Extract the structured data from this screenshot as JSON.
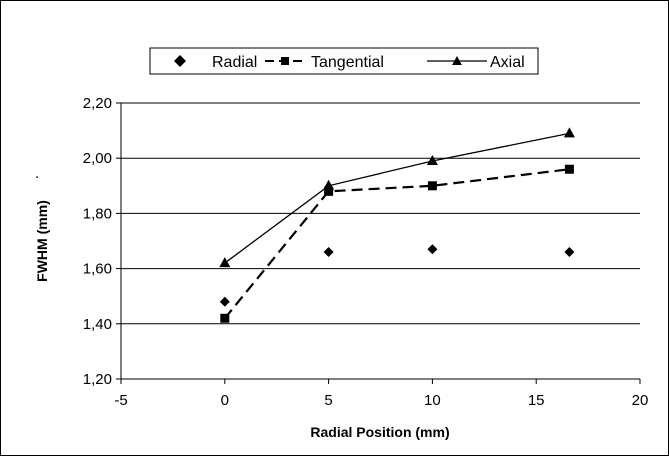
{
  "chart_data": {
    "type": "line",
    "xlabel": "Radial Position (mm)",
    "ylabel": "FWHM (mm)",
    "xlim": [
      -5,
      20
    ],
    "ylim": [
      1.2,
      2.2
    ],
    "xticks": [
      "-5",
      "0",
      "5",
      "10",
      "15",
      "20"
    ],
    "yticks": [
      "1,20",
      "1,40",
      "1,60",
      "1,80",
      "2,00",
      "2,20"
    ],
    "grid": "horizontal",
    "legend_position": "top",
    "series": [
      {
        "name": "Radial",
        "marker": "diamond",
        "line": "none",
        "color": "#000000",
        "x": [
          0,
          5,
          10,
          16.6
        ],
        "y": [
          1.48,
          1.66,
          1.67,
          1.66
        ]
      },
      {
        "name": "Tangential",
        "marker": "square",
        "line": "dashed",
        "color": "#000000",
        "x": [
          0,
          5,
          10,
          16.6
        ],
        "y": [
          1.42,
          1.88,
          1.9,
          1.96
        ]
      },
      {
        "name": "Axial",
        "marker": "triangle",
        "line": "solid",
        "color": "#000000",
        "x": [
          0,
          5,
          10,
          16.6
        ],
        "y": [
          1.62,
          1.9,
          1.99,
          2.09
        ]
      }
    ]
  }
}
